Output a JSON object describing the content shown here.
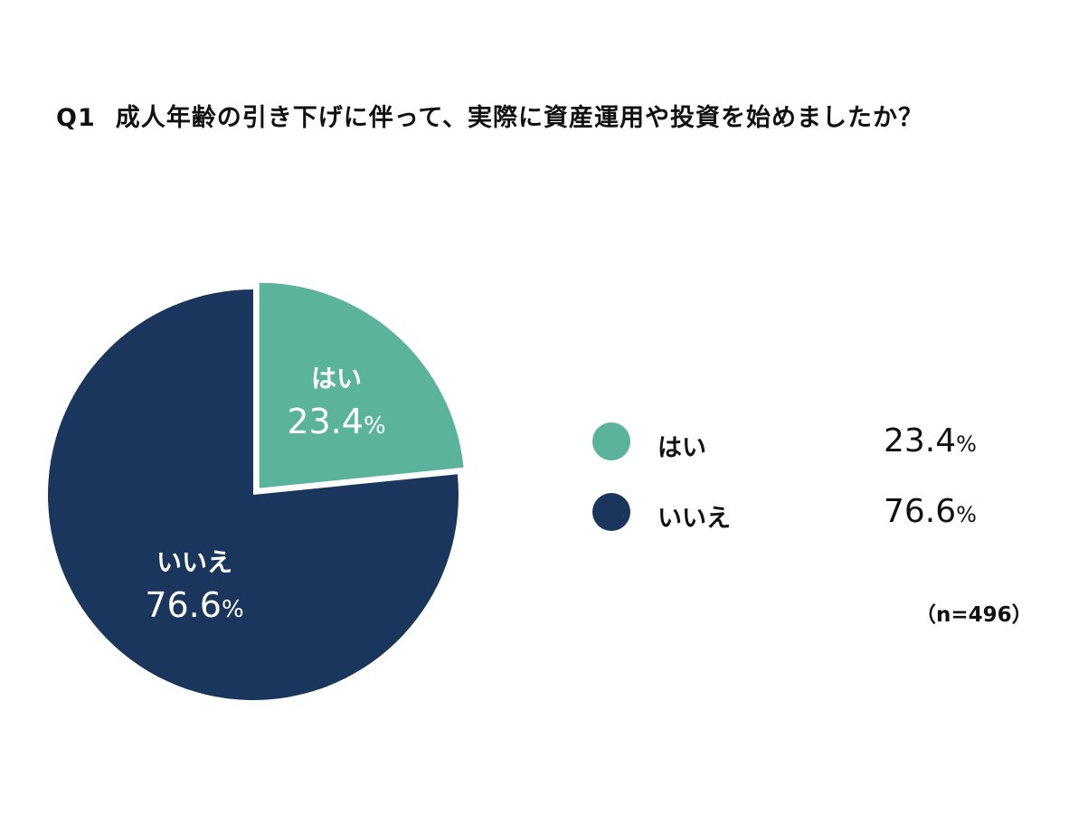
{
  "title": {
    "number": "Q1",
    "text": "成人年齢の引き下げに伴って、実際に資産運用や投資を始めましたか？"
  },
  "chart_data": {
    "type": "pie",
    "title": "Q1 成人年齢の引き下げに伴って、実際に資産運用や投資を始めましたか？",
    "slices": [
      {
        "label": "はい",
        "value": 23.4,
        "display": "23.4",
        "unit": "%",
        "color": "#5bb39b",
        "exploded": true
      },
      {
        "label": "いいえ",
        "value": 76.6,
        "display": "76.6",
        "unit": "%",
        "color": "#1b365d",
        "exploded": false
      }
    ],
    "start": "12 o'clock",
    "direction": "clockwise",
    "legend_position": "right"
  },
  "sample_size": "（n=496）"
}
